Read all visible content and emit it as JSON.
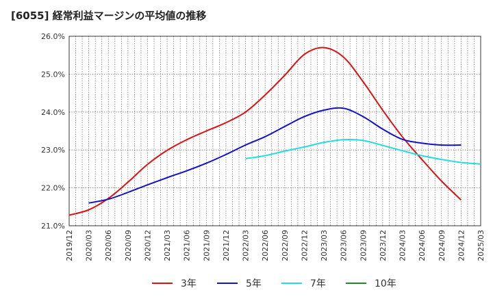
{
  "chart_data": {
    "type": "line",
    "title": "[6055]  経常利益マージンの平均値の推移",
    "xlabel": "",
    "ylabel": "",
    "ylim": [
      21.0,
      26.0
    ],
    "yticks": [
      "21.0%",
      "22.0%",
      "23.0%",
      "24.0%",
      "25.0%",
      "26.0%"
    ],
    "x_tick_labels": [
      "2019/12",
      "2020/03",
      "2020/06",
      "2020/09",
      "2020/12",
      "2021/03",
      "2021/06",
      "2021/09",
      "2021/12",
      "2022/03",
      "2022/06",
      "2022/09",
      "2022/12",
      "2023/03",
      "2023/06",
      "2023/09",
      "2023/12",
      "2024/03",
      "2024/06",
      "2024/09",
      "2024/12",
      "2025/03"
    ],
    "grid": true,
    "legend_position": "bottom",
    "series": [
      {
        "name": "3年",
        "color": "#dd1111",
        "start_index": 0,
        "values": [
          21.28,
          21.42,
          21.72,
          22.15,
          22.62,
          22.99,
          23.27,
          23.5,
          23.72,
          24.0,
          24.45,
          24.97,
          25.52,
          25.7,
          25.45,
          24.8,
          24.05,
          23.35,
          22.75,
          22.18,
          21.68
        ]
      },
      {
        "name": "5年",
        "color": "#1111cc",
        "start_index": 1,
        "values": [
          21.6,
          21.7,
          21.88,
          22.08,
          22.27,
          22.45,
          22.65,
          22.88,
          23.13,
          23.35,
          23.62,
          23.88,
          24.05,
          24.1,
          23.88,
          23.55,
          23.28,
          23.18,
          23.13,
          23.13
        ]
      },
      {
        "name": "7年",
        "color": "#22dddd",
        "start_index": 9,
        "values": [
          22.77,
          22.85,
          22.97,
          23.08,
          23.2,
          23.27,
          23.25,
          23.12,
          22.98,
          22.85,
          22.75,
          22.67,
          22.63
        ]
      },
      {
        "name": "10年",
        "color": "#228822",
        "start_index": 0,
        "values": []
      }
    ]
  }
}
